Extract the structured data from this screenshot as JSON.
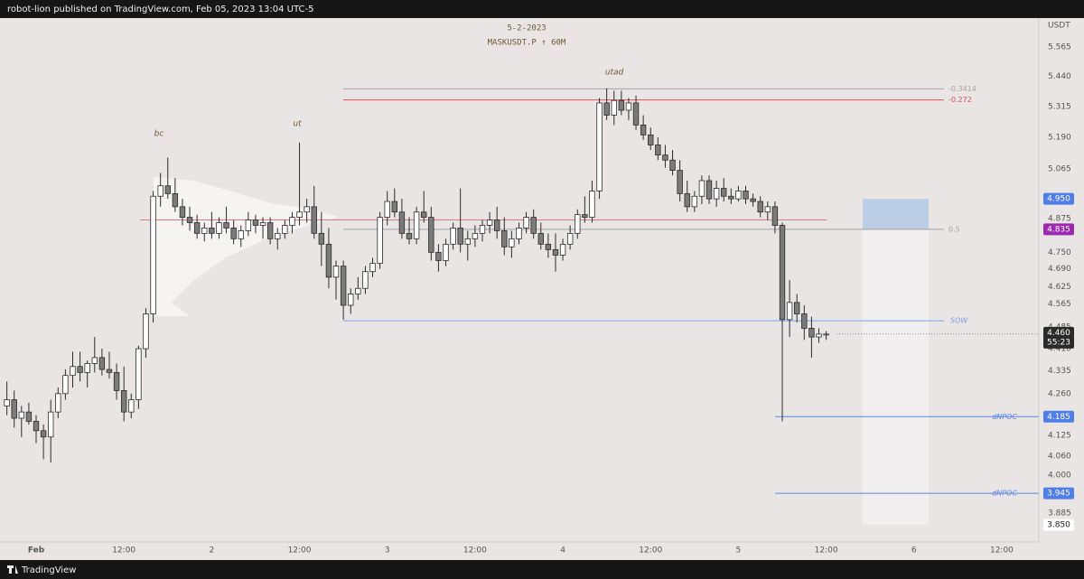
{
  "header": {
    "text": "robot-lion published on TradingView.com, Feb 05, 2023 13:04 UTC-5"
  },
  "footer": {
    "text": "TradingView"
  },
  "chart_data": {
    "type": "candlestick",
    "title": "5-2-2023",
    "subtitle": "MASKUSDT.P ↑ 60M",
    "currency": "USDT",
    "log_scale": true,
    "grid": false,
    "up_color": "#ffffff",
    "down_color": "#7b7b7b",
    "ylim": [
      3.805,
      5.706
    ],
    "xlim": [
      -4.94,
      137.07
    ],
    "yticks": [
      5.565,
      {
        "value": 5.44,
        "label": "5.440"
      },
      5.315,
      {
        "value": 5.19,
        "label": "5.190"
      },
      5.065,
      4.875,
      {
        "value": 4.75,
        "label": "4.750"
      },
      {
        "value": 4.69,
        "label": "4.690"
      },
      4.625,
      4.565,
      4.485,
      {
        "value": 4.41,
        "label": "4.410"
      },
      4.335,
      {
        "value": 4.26,
        "label": "4.260"
      },
      4.125,
      {
        "value": 4.06,
        "label": "4.060"
      },
      {
        "value": 4.0,
        "label": "4.000"
      },
      3.885
    ],
    "xticks": [
      {
        "value": 0,
        "label": "Feb"
      },
      {
        "value": 12,
        "label": "12:00"
      },
      {
        "value": 24,
        "label": "2"
      },
      {
        "value": 36,
        "label": "12:00"
      },
      {
        "value": 48,
        "label": "3"
      },
      {
        "value": 60,
        "label": "12:00"
      },
      {
        "value": 72,
        "label": "4"
      },
      {
        "value": 84,
        "label": "12:00"
      },
      {
        "value": 96,
        "label": "5"
      },
      {
        "value": 108,
        "label": "12:00"
      },
      {
        "value": 120,
        "label": "6"
      },
      {
        "value": 132,
        "label": "12:00"
      }
    ],
    "x": [
      -4,
      -3,
      -2,
      -1,
      0,
      1,
      2,
      3,
      4,
      5,
      6,
      7,
      8,
      9,
      10,
      11,
      12,
      13,
      14,
      15,
      16,
      17,
      18,
      19,
      20,
      21,
      22,
      23,
      24,
      25,
      26,
      27,
      28,
      29,
      30,
      31,
      32,
      33,
      34,
      35,
      36,
      37,
      38,
      39,
      40,
      41,
      42,
      43,
      44,
      45,
      46,
      47,
      48,
      49,
      50,
      51,
      52,
      53,
      54,
      55,
      56,
      57,
      58,
      59,
      60,
      61,
      62,
      63,
      64,
      65,
      66,
      67,
      68,
      69,
      70,
      71,
      72,
      73,
      74,
      75,
      76,
      77,
      78,
      79,
      80,
      81,
      82,
      83,
      84,
      85,
      86,
      87,
      88,
      89,
      90,
      91,
      92,
      93,
      94,
      95,
      96,
      97,
      98,
      99,
      100,
      101,
      102,
      103,
      104,
      105,
      106,
      107,
      108
    ],
    "ohlc": [
      [
        4.22,
        4.3,
        4.19,
        4.24
      ],
      [
        4.24,
        4.27,
        4.15,
        4.18
      ],
      [
        4.18,
        4.22,
        4.12,
        4.2
      ],
      [
        4.2,
        4.23,
        4.16,
        4.17
      ],
      [
        4.17,
        4.19,
        4.1,
        4.14
      ],
      [
        4.14,
        4.16,
        4.05,
        4.12
      ],
      [
        4.12,
        4.24,
        4.04,
        4.2
      ],
      [
        4.2,
        4.28,
        4.18,
        4.26
      ],
      [
        4.26,
        4.34,
        4.24,
        4.32
      ],
      [
        4.32,
        4.4,
        4.28,
        4.35
      ],
      [
        4.35,
        4.4,
        4.3,
        4.33
      ],
      [
        4.33,
        4.37,
        4.28,
        4.36
      ],
      [
        4.36,
        4.45,
        4.33,
        4.38
      ],
      [
        4.38,
        4.41,
        4.32,
        4.34
      ],
      [
        4.34,
        4.4,
        4.31,
        4.33
      ],
      [
        4.33,
        4.36,
        4.24,
        4.27
      ],
      [
        4.27,
        4.35,
        4.17,
        4.2
      ],
      [
        4.2,
        4.26,
        4.18,
        4.24
      ],
      [
        4.24,
        4.42,
        4.21,
        4.41
      ],
      [
        4.41,
        4.55,
        4.38,
        4.53
      ],
      [
        4.53,
        4.98,
        4.5,
        4.96
      ],
      [
        4.96,
        5.05,
        4.92,
        5.0
      ],
      [
        5.0,
        5.11,
        4.95,
        4.97
      ],
      [
        4.97,
        5.03,
        4.9,
        4.92
      ],
      [
        4.92,
        4.95,
        4.85,
        4.88
      ],
      [
        4.88,
        4.92,
        4.83,
        4.86
      ],
      [
        4.86,
        4.89,
        4.8,
        4.82
      ],
      [
        4.82,
        4.86,
        4.79,
        4.84
      ],
      [
        4.84,
        4.9,
        4.8,
        4.82
      ],
      [
        4.82,
        4.88,
        4.8,
        4.86
      ],
      [
        4.86,
        4.92,
        4.82,
        4.84
      ],
      [
        4.84,
        4.87,
        4.78,
        4.8
      ],
      [
        4.8,
        4.85,
        4.77,
        4.83
      ],
      [
        4.83,
        4.9,
        4.81,
        4.87
      ],
      [
        4.87,
        4.89,
        4.82,
        4.85
      ],
      [
        4.85,
        4.88,
        4.8,
        4.86
      ],
      [
        4.86,
        4.88,
        4.78,
        4.8
      ],
      [
        4.8,
        4.84,
        4.76,
        4.82
      ],
      [
        4.82,
        4.87,
        4.8,
        4.85
      ],
      [
        4.85,
        4.9,
        4.82,
        4.88
      ],
      [
        4.88,
        5.17,
        4.85,
        4.9
      ],
      [
        4.9,
        4.95,
        4.86,
        4.92
      ],
      [
        4.92,
        5.0,
        4.8,
        4.82
      ],
      [
        4.82,
        4.9,
        4.7,
        4.78
      ],
      [
        4.78,
        4.84,
        4.62,
        4.66
      ],
      [
        4.66,
        4.72,
        4.58,
        4.7
      ],
      [
        4.7,
        4.72,
        4.51,
        4.56
      ],
      [
        4.56,
        4.62,
        4.53,
        4.6
      ],
      [
        4.6,
        4.66,
        4.58,
        4.62
      ],
      [
        4.62,
        4.7,
        4.6,
        4.68
      ],
      [
        4.68,
        4.73,
        4.66,
        4.71
      ],
      [
        4.71,
        4.9,
        4.69,
        4.88
      ],
      [
        4.88,
        4.98,
        4.85,
        4.94
      ],
      [
        4.94,
        4.99,
        4.88,
        4.9
      ],
      [
        4.9,
        4.95,
        4.8,
        4.82
      ],
      [
        4.82,
        4.88,
        4.78,
        4.8
      ],
      [
        4.8,
        4.92,
        4.78,
        4.9
      ],
      [
        4.9,
        4.98,
        4.86,
        4.88
      ],
      [
        4.88,
        4.92,
        4.72,
        4.75
      ],
      [
        4.75,
        4.78,
        4.68,
        4.72
      ],
      [
        4.72,
        4.8,
        4.7,
        4.78
      ],
      [
        4.78,
        4.86,
        4.76,
        4.84
      ],
      [
        4.84,
        4.99,
        4.75,
        4.78
      ],
      [
        4.78,
        4.83,
        4.72,
        4.8
      ],
      [
        4.8,
        4.85,
        4.77,
        4.82
      ],
      [
        4.82,
        4.87,
        4.79,
        4.85
      ],
      [
        4.85,
        4.9,
        4.82,
        4.87
      ],
      [
        4.87,
        4.92,
        4.8,
        4.83
      ],
      [
        4.83,
        4.88,
        4.74,
        4.77
      ],
      [
        4.77,
        4.83,
        4.73,
        4.8
      ],
      [
        4.8,
        4.86,
        4.78,
        4.84
      ],
      [
        4.84,
        4.9,
        4.82,
        4.88
      ],
      [
        4.88,
        4.91,
        4.8,
        4.82
      ],
      [
        4.82,
        4.86,
        4.76,
        4.78
      ],
      [
        4.78,
        4.82,
        4.73,
        4.76
      ],
      [
        4.76,
        4.82,
        4.68,
        4.74
      ],
      [
        4.74,
        4.8,
        4.72,
        4.78
      ],
      [
        4.78,
        4.85,
        4.76,
        4.82
      ],
      [
        4.82,
        4.91,
        4.8,
        4.89
      ],
      [
        4.89,
        4.96,
        4.86,
        4.88
      ],
      [
        4.88,
        5.02,
        4.86,
        4.98
      ],
      [
        4.98,
        5.35,
        4.95,
        5.33
      ],
      [
        5.33,
        5.39,
        5.26,
        5.28
      ],
      [
        5.28,
        5.38,
        5.24,
        5.34
      ],
      [
        5.34,
        5.38,
        5.28,
        5.3
      ],
      [
        5.3,
        5.35,
        5.26,
        5.33
      ],
      [
        5.33,
        5.36,
        5.22,
        5.24
      ],
      [
        5.24,
        5.28,
        5.18,
        5.2
      ],
      [
        5.2,
        5.23,
        5.14,
        5.16
      ],
      [
        5.16,
        5.19,
        5.1,
        5.12
      ],
      [
        5.12,
        5.16,
        5.07,
        5.1
      ],
      [
        5.1,
        5.14,
        5.04,
        5.06
      ],
      [
        5.06,
        5.1,
        4.94,
        4.97
      ],
      [
        4.97,
        5.02,
        4.9,
        4.92
      ],
      [
        4.92,
        4.98,
        4.9,
        4.96
      ],
      [
        4.96,
        5.04,
        4.93,
        5.02
      ],
      [
        5.02,
        5.04,
        4.93,
        4.95
      ],
      [
        4.95,
        5.02,
        4.92,
        4.99
      ],
      [
        4.99,
        5.03,
        4.94,
        4.96
      ],
      [
        4.96,
        4.99,
        4.93,
        4.95
      ],
      [
        4.95,
        5.0,
        4.94,
        4.98
      ],
      [
        4.98,
        5.0,
        4.93,
        4.95
      ],
      [
        4.95,
        4.97,
        4.92,
        4.94
      ],
      [
        4.94,
        4.96,
        4.88,
        4.9
      ],
      [
        4.9,
        4.94,
        4.87,
        4.92
      ],
      [
        4.92,
        4.94,
        4.82,
        4.85
      ],
      [
        4.85,
        4.86,
        4.17,
        4.51
      ],
      [
        4.51,
        4.65,
        4.45,
        4.57
      ],
      [
        4.57,
        4.6,
        4.5,
        4.53
      ],
      [
        4.53,
        4.56,
        4.44,
        4.48
      ],
      [
        4.48,
        4.52,
        4.38,
        4.45
      ],
      [
        4.45,
        4.48,
        4.43,
        4.46
      ],
      [
        4.46,
        4.47,
        4.44,
        4.46
      ]
    ],
    "levels": [
      {
        "label": "-0.3414",
        "value": 5.388,
        "color": "#a9a2a2"
      },
      {
        "label": "-0.272",
        "value": 5.342,
        "color": "#e0505a"
      },
      {
        "label": "0.5",
        "value": 4.835,
        "color": "#a9a2a2"
      },
      {
        "label": "SOW",
        "value": 4.506,
        "color": "#7d9fe0"
      },
      {
        "label": "dNPOC",
        "value": 4.185,
        "color": "#5b86e8"
      },
      {
        "label": "dNPOC",
        "value": 3.945,
        "color": "#5b86e8"
      }
    ],
    "poc_line": {
      "value": 4.87,
      "color": "#e07a7a"
    },
    "zones": [
      {
        "from": 4.835,
        "to": 4.95,
        "color": "#bccde6"
      },
      {
        "from": 3.85,
        "to": 4.835,
        "color": "#f0eeef"
      }
    ],
    "annotations": [
      "bc",
      "ut",
      "utad"
    ],
    "price_labels": [
      {
        "value": 4.95,
        "label": "4.950",
        "color": "#4f7ee8"
      },
      {
        "value": 4.835,
        "label": "4.835",
        "color": "#9c27b0"
      },
      {
        "value": 4.185,
        "label": "4.185",
        "color": "#4f7ee8"
      },
      {
        "value": 3.945,
        "label": "3.945",
        "color": "#4f7ee8"
      },
      {
        "value": 3.85,
        "label": "3.850",
        "color": "#ffffff"
      }
    ],
    "last_price": {
      "value": 4.46,
      "label": "4.460",
      "countdown": "55:23",
      "color": "#2a2a2a"
    }
  }
}
